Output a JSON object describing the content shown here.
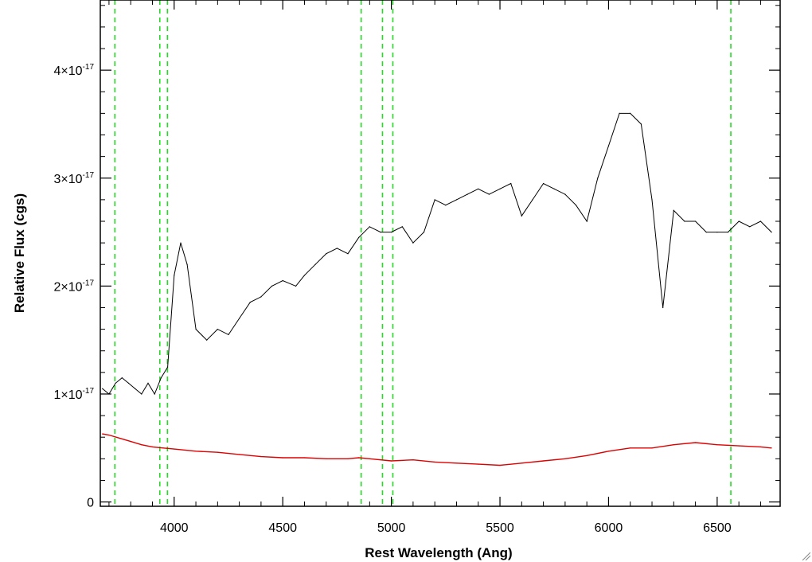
{
  "chart_data": {
    "type": "line",
    "title": "",
    "xlabel": "Rest Wavelength (Ang)",
    "ylabel": "Relative Flux (cgs)",
    "xlim": [
      3660,
      6790
    ],
    "ylim": [
      -4e-19,
      4.65e-17
    ],
    "x_ticks": [
      {
        "value": 4000,
        "label": "4000"
      },
      {
        "value": 4500,
        "label": "4500"
      },
      {
        "value": 5000,
        "label": "5000"
      },
      {
        "value": 5500,
        "label": "5500"
      },
      {
        "value": 6000,
        "label": "6000"
      },
      {
        "value": 6500,
        "label": "6500"
      }
    ],
    "y_ticks": [
      {
        "value": 0,
        "mantissa": "0",
        "exponent": ""
      },
      {
        "value": 1e-17,
        "mantissa": "1×10",
        "exponent": "-17"
      },
      {
        "value": 2e-17,
        "mantissa": "2×10",
        "exponent": "-17"
      },
      {
        "value": 3e-17,
        "mantissa": "3×10",
        "exponent": "-17"
      },
      {
        "value": 4e-17,
        "mantissa": "4×10",
        "exponent": "-17"
      }
    ],
    "grid": false,
    "legend": "none",
    "reference_lines": {
      "color": "#22dd22",
      "style": "dashed",
      "x": [
        3727,
        3934,
        3969,
        4861,
        4959,
        5007,
        6563
      ]
    },
    "series": [
      {
        "color": "#000000",
        "x": [
          3670,
          3700,
          3730,
          3760,
          3790,
          3820,
          3850,
          3880,
          3910,
          3940,
          3970,
          4000,
          4030,
          4060,
          4100,
          4150,
          4200,
          4250,
          4300,
          4350,
          4400,
          4450,
          4500,
          4560,
          4600,
          4650,
          4700,
          4750,
          4800,
          4850,
          4900,
          4950,
          5000,
          5050,
          5100,
          5150,
          5200,
          5250,
          5300,
          5350,
          5400,
          5450,
          5500,
          5550,
          5600,
          5650,
          5700,
          5750,
          5800,
          5850,
          5900,
          5950,
          6000,
          6050,
          6100,
          6150,
          6200,
          6250,
          6300,
          6350,
          6400,
          6450,
          6500,
          6550,
          6600,
          6650,
          6700,
          6750
        ],
        "y": [
          1.05e-17,
          1e-17,
          1.1e-17,
          1.15e-17,
          1.1e-17,
          1.05e-17,
          1e-17,
          1.1e-17,
          1e-17,
          1.15e-17,
          1.25e-17,
          2.1e-17,
          2.4e-17,
          2.2e-17,
          1.6e-17,
          1.5e-17,
          1.6e-17,
          1.55e-17,
          1.7e-17,
          1.85e-17,
          1.9e-17,
          2e-17,
          2.05e-17,
          2e-17,
          2.1e-17,
          2.2e-17,
          2.3e-17,
          2.35e-17,
          2.3e-17,
          2.45e-17,
          2.55e-17,
          2.5e-17,
          2.5e-17,
          2.55e-17,
          2.4e-17,
          2.5e-17,
          2.8e-17,
          2.75e-17,
          2.8e-17,
          2.85e-17,
          2.9e-17,
          2.85e-17,
          2.9e-17,
          2.95e-17,
          2.65e-17,
          2.8e-17,
          2.95e-17,
          2.9e-17,
          2.85e-17,
          2.75e-17,
          2.6e-17,
          3e-17,
          3.3e-17,
          3.6e-17,
          3.6e-17,
          3.5e-17,
          2.8e-17,
          1.8e-17,
          2.7e-17,
          2.6e-17,
          2.6e-17,
          2.5e-17,
          2.5e-17,
          2.5e-17,
          2.6e-17,
          2.55e-17,
          2.6e-17,
          2.5e-17
        ]
      },
      {
        "color": "#dd0000",
        "x": [
          3670,
          3700,
          3750,
          3800,
          3850,
          3900,
          3950,
          4000,
          4100,
          4200,
          4300,
          4400,
          4500,
          4600,
          4700,
          4800,
          4850,
          4900,
          5000,
          5100,
          5200,
          5300,
          5400,
          5500,
          5600,
          5700,
          5800,
          5900,
          6000,
          6100,
          6200,
          6300,
          6400,
          6500,
          6600,
          6700,
          6750
        ],
        "y": [
          6.3e-18,
          6.2e-18,
          5.9e-18,
          5.6e-18,
          5.3e-18,
          5.1e-18,
          5e-18,
          4.9e-18,
          4.7e-18,
          4.6e-18,
          4.4e-18,
          4.2e-18,
          4.1e-18,
          4.1e-18,
          4e-18,
          4e-18,
          4.1e-18,
          4e-18,
          3.8e-18,
          3.9e-18,
          3.7e-18,
          3.6e-18,
          3.5e-18,
          3.4e-18,
          3.6e-18,
          3.8e-18,
          4e-18,
          4.3e-18,
          4.7e-18,
          5e-18,
          5e-18,
          5.3e-18,
          5.5e-18,
          5.3e-18,
          5.2e-18,
          5.1e-18,
          5e-18
        ]
      }
    ]
  }
}
